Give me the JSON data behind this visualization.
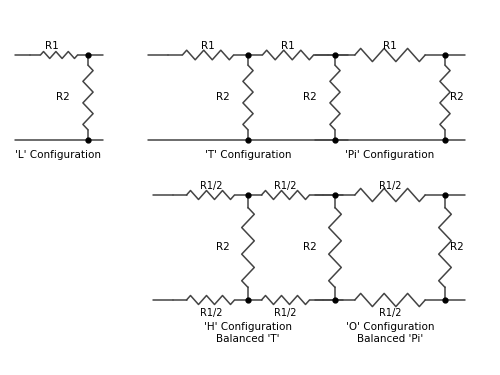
{
  "background_color": "#ffffff",
  "line_color": "#444444",
  "dot_color": "#000000",
  "configs": {
    "L": {
      "label": "'L' Configuration"
    },
    "T": {
      "label": "'T' Configuration"
    },
    "Pi": {
      "label": "'Pi' Configuration"
    },
    "H": {
      "label": "'H' Configuration\nBalanced 'T'"
    },
    "O": {
      "label": "'O' Configuration\nBalanced 'Pi'"
    }
  }
}
